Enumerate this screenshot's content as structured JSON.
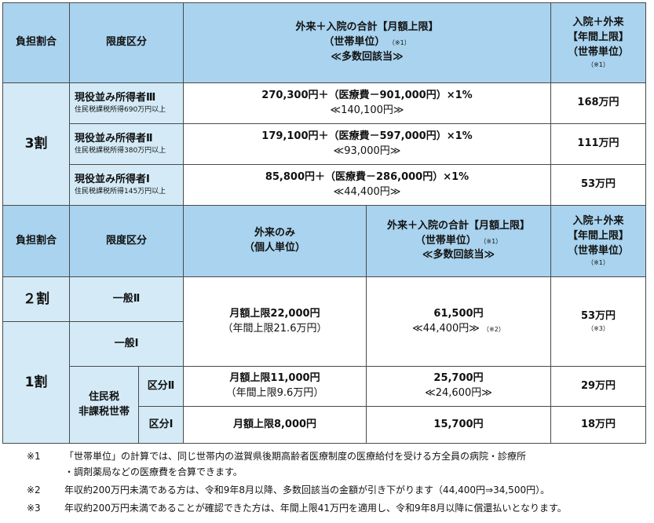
{
  "header1": {
    "burden": "負担割合",
    "category": "限度区分",
    "combined_title": "外来＋入院の合計【月額上限】",
    "household_unit": "（世帯単位）",
    "note1_mark": "（※1）",
    "multiple": "≪多数回該当≫",
    "annual_line1": "入院＋外来",
    "annual_line2": "【年間上限】",
    "annual_line3": "（世帯単位）",
    "annual_mark": "（※1）"
  },
  "section3": {
    "ratio": "3割",
    "rows": [
      {
        "name": "現役並み所得者Ⅲ",
        "sub": "住民税課税所得690万円以上",
        "formula": "270,300円＋（医療費－901,000円）×1%",
        "multiple": "≪140,100円≫",
        "annual": "168万円"
      },
      {
        "name": "現役並み所得者Ⅱ",
        "sub": "住民税課税所得380万円以上",
        "formula": "179,100円＋（医療費－597,000円）×1%",
        "multiple": "≪93,000円≫",
        "annual": "111万円"
      },
      {
        "name": "現役並み所得者Ⅰ",
        "sub": "住民税課税所得145万円以上",
        "formula": "85,800円＋（医療費－286,000円）×1%",
        "multiple": "≪44,400円≫",
        "annual": "53万円"
      }
    ]
  },
  "header2": {
    "burden": "負担割合",
    "category": "限度区分",
    "outpatient_line1": "外来のみ",
    "outpatient_line2": "（個人単位）",
    "combined_title": "外来＋入院の合計【月額上限】",
    "household_unit": "（世帯単位）",
    "note1_mark": "（※1）",
    "multiple": "≪多数回該当≫",
    "annual_line1": "入院＋外来",
    "annual_line2": "【年間上限】",
    "annual_line3": "（世帯単位）",
    "annual_mark": "（※1）"
  },
  "section2": {
    "ratio2": "２割",
    "ratio1": "1割",
    "general2": "一般Ⅱ",
    "general1": "一般Ⅰ",
    "general_outpatient": "月額上限22,000円",
    "general_outpatient_annual": "（年間上限21.6万円）",
    "general_combined": "61,500円",
    "general_multiple": "≪44,400円≫",
    "general_multiple_mark": "（※2）",
    "general_annual": "53万円",
    "general_annual_mark": "（※3）",
    "exempt_line1": "住民税",
    "exempt_line2": "非課税世帯",
    "k2_label": "区分Ⅱ",
    "k2_outpatient": "月額上限11,000円",
    "k2_outpatient_annual": "（年間上限9.6万円）",
    "k2_combined": "25,700円",
    "k2_multiple": "≪24,600円≫",
    "k2_annual": "29万円",
    "k1_label": "区分Ⅰ",
    "k1_outpatient": "月額上限8,000円",
    "k1_combined": "15,700円",
    "k1_annual": "18万円"
  },
  "notes": [
    {
      "mark": "※1",
      "text": "「世帯単位」の計算では、同じ世帯内の滋賀県後期高齢者医療制度の医療給付を受ける方全員の病院・診療所"
    },
    {
      "mark": "",
      "text": "・調剤薬局などの医療費を合算できます。"
    },
    {
      "mark": "※2",
      "text": "年収約200万円未満である方は、令和9年8月以降、多数回該当の金額が引き下がります（44,400円⇒34,500円）。"
    },
    {
      "mark": "※3",
      "text": "年収約200万円未満であることが確認できた方は、年間上限41万円を適用し、令和9年8月以降に償還払いとなります。"
    }
  ]
}
